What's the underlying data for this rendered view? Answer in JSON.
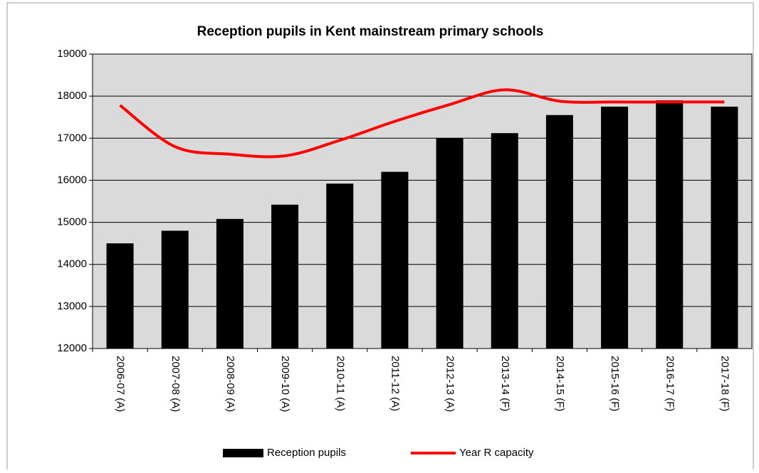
{
  "chart_data": {
    "type": "bar",
    "title": "Reception pupils in Kent mainstream primary schools",
    "categories": [
      "2006-07 (A)",
      "2007-08 (A)",
      "2008-09 (A)",
      "2009-10 (A)",
      "2010-11 (A)",
      "2011-12 (A)",
      "2012-13 (A)",
      "2013-14 (F)",
      "2014-15 (F)",
      "2015-16 (F)",
      "2016-17 (F)",
      "2017-18 (F)"
    ],
    "series": [
      {
        "name": "Reception pupils",
        "type": "bar",
        "color": "#000000",
        "values": [
          14500,
          14800,
          15080,
          15420,
          15920,
          16200,
          17000,
          17120,
          17550,
          17750,
          17900,
          17750
        ]
      },
      {
        "name": "Year R capacity",
        "type": "line",
        "color": "#ff0000",
        "values": [
          17780,
          16800,
          16620,
          16580,
          16950,
          17400,
          17800,
          18150,
          17880,
          17860,
          17860,
          17860
        ]
      }
    ],
    "ylim": [
      12000,
      19000
    ],
    "yticks": [
      12000,
      13000,
      14000,
      15000,
      16000,
      17000,
      18000,
      19000
    ],
    "grid": true,
    "legend": "bottom"
  }
}
